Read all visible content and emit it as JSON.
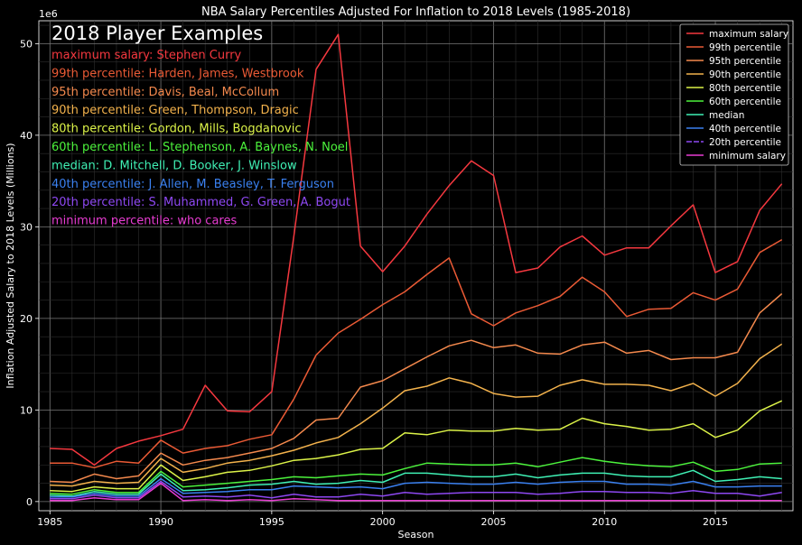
{
  "chart_data": {
    "type": "line",
    "title": "NBA Salary Percentiles Adjusted For Inflation to 2018 Levels (1985-2018)",
    "xlabel": "Season",
    "ylabel": "Inflation Adjusted Salary to 2018 Levels (Millions)",
    "y_offset_label": "1e6",
    "xlim": [
      1984.5,
      2018.5
    ],
    "ylim": [
      -1,
      52.5
    ],
    "xticks": [
      1985,
      1990,
      1995,
      2000,
      2005,
      2010,
      2015
    ],
    "yticks": [
      0,
      10,
      20,
      30,
      40,
      50
    ],
    "grid": true,
    "legend_position": "top-right",
    "x": [
      1985,
      1986,
      1987,
      1988,
      1989,
      1990,
      1991,
      1992,
      1993,
      1994,
      1995,
      1996,
      1997,
      1998,
      1999,
      2000,
      2001,
      2002,
      2003,
      2004,
      2005,
      2006,
      2007,
      2008,
      2009,
      2010,
      2011,
      2012,
      2013,
      2014,
      2015,
      2016,
      2017,
      2018
    ],
    "series": [
      {
        "name": "maximum salary",
        "color": "#f5383f",
        "values": [
          5.8,
          5.7,
          4.0,
          5.8,
          6.6,
          7.2,
          7.9,
          12.7,
          9.9,
          9.8,
          12.0,
          29.0,
          47.2,
          51.0,
          27.9,
          25.1,
          27.9,
          31.4,
          34.5,
          37.2,
          35.6,
          25.0,
          25.5,
          27.8,
          29.0,
          26.9,
          27.7,
          27.7,
          30.1,
          32.4,
          25.0,
          26.2,
          31.8,
          34.7
        ]
      },
      {
        "name": "99th percentile",
        "color": "#ea5a35",
        "values": [
          4.2,
          4.2,
          3.7,
          4.4,
          4.2,
          6.7,
          5.3,
          5.8,
          6.1,
          6.8,
          7.3,
          11.2,
          16.0,
          18.4,
          19.9,
          21.5,
          22.9,
          24.8,
          26.6,
          20.5,
          19.2,
          20.6,
          21.4,
          22.4,
          24.5,
          22.9,
          20.2,
          21.0,
          21.1,
          22.8,
          22.0,
          23.2,
          27.2,
          28.6
        ]
      },
      {
        "name": "95th percentile",
        "color": "#f4894d",
        "values": [
          2.2,
          2.1,
          3.0,
          2.5,
          2.8,
          5.3,
          4.0,
          4.5,
          4.8,
          5.3,
          5.8,
          6.9,
          8.9,
          9.1,
          12.5,
          13.2,
          14.5,
          15.8,
          17.0,
          17.6,
          16.8,
          17.1,
          16.2,
          16.1,
          17.1,
          17.4,
          16.2,
          16.5,
          15.5,
          15.7,
          15.7,
          16.3,
          20.6,
          22.7
        ]
      },
      {
        "name": "90th percentile",
        "color": "#f3b24c",
        "values": [
          1.8,
          1.7,
          2.2,
          2.0,
          2.1,
          4.7,
          3.2,
          3.6,
          4.2,
          4.5,
          5.0,
          5.6,
          6.4,
          7.0,
          8.5,
          10.2,
          12.1,
          12.6,
          13.5,
          12.9,
          11.8,
          11.4,
          11.5,
          12.7,
          13.3,
          12.8,
          12.8,
          12.7,
          12.1,
          12.9,
          11.5,
          12.9,
          15.6,
          17.2
        ]
      },
      {
        "name": "80th percentile",
        "color": "#dcf348",
        "values": [
          1.2,
          1.1,
          1.6,
          1.4,
          1.4,
          4.0,
          2.3,
          2.7,
          3.2,
          3.4,
          3.9,
          4.5,
          4.7,
          5.1,
          5.7,
          5.8,
          7.5,
          7.3,
          7.8,
          7.7,
          7.7,
          8.0,
          7.8,
          7.9,
          9.1,
          8.5,
          8.2,
          7.8,
          7.9,
          8.5,
          7.0,
          7.8,
          9.9,
          11.0
        ]
      },
      {
        "name": "60th percentile",
        "color": "#4cf33c",
        "values": [
          0.9,
          0.8,
          1.3,
          1.0,
          1.0,
          3.3,
          1.6,
          1.8,
          2.0,
          2.2,
          2.4,
          2.7,
          2.6,
          2.8,
          3.0,
          2.9,
          3.6,
          4.2,
          4.1,
          4.0,
          4.0,
          4.2,
          3.8,
          4.3,
          4.8,
          4.4,
          4.1,
          3.9,
          3.8,
          4.3,
          3.3,
          3.5,
          4.1,
          4.2
        ]
      },
      {
        "name": "median",
        "color": "#3ff0b4",
        "values": [
          0.7,
          0.6,
          1.1,
          0.8,
          0.8,
          3.0,
          1.2,
          1.3,
          1.5,
          1.8,
          1.9,
          2.2,
          1.9,
          2.0,
          2.3,
          2.1,
          3.1,
          3.1,
          2.9,
          2.7,
          2.7,
          3.0,
          2.6,
          2.9,
          3.1,
          3.1,
          2.8,
          2.7,
          2.7,
          3.4,
          2.2,
          2.4,
          2.7,
          2.5
        ]
      },
      {
        "name": "40th percentile",
        "color": "#3a80f0",
        "values": [
          0.5,
          0.5,
          0.9,
          0.6,
          0.6,
          2.5,
          0.9,
          1.0,
          1.1,
          1.3,
          1.3,
          1.7,
          1.6,
          1.5,
          1.6,
          1.4,
          2.0,
          2.1,
          2.0,
          1.9,
          1.9,
          2.1,
          1.9,
          2.1,
          2.2,
          2.2,
          1.9,
          1.9,
          1.8,
          2.2,
          1.6,
          1.6,
          1.7,
          1.7
        ]
      },
      {
        "name": "20th percentile",
        "color": "#8e48f2",
        "values": [
          0.3,
          0.3,
          0.7,
          0.4,
          0.4,
          2.2,
          0.5,
          0.6,
          0.5,
          0.7,
          0.4,
          0.8,
          0.5,
          0.5,
          0.8,
          0.6,
          1.0,
          0.8,
          0.9,
          1.0,
          1.0,
          1.0,
          0.8,
          0.9,
          1.1,
          1.1,
          1.0,
          1.0,
          0.9,
          1.2,
          0.9,
          0.9,
          0.6,
          1.0
        ]
      },
      {
        "name": "minimum salary",
        "color": "#e83cd2",
        "values": [
          0.1,
          0.1,
          0.4,
          0.2,
          0.2,
          2.0,
          0.1,
          0.2,
          0.1,
          0.2,
          0.1,
          0.3,
          0.2,
          0.1,
          0.1,
          0.1,
          0.1,
          0.1,
          0.1,
          0.1,
          0.1,
          0.1,
          0.1,
          0.1,
          0.1,
          0.1,
          0.1,
          0.1,
          0.1,
          0.1,
          0.1,
          0.1,
          0.1,
          0.1
        ]
      }
    ],
    "annotations": [
      {
        "text": "2018 Player Examples",
        "color": "#ffffff"
      },
      {
        "text": "maximum salary: Stephen Curry",
        "color": "#f5383f"
      },
      {
        "text": "99th percentile: Harden, James, Westbrook",
        "color": "#ea5a35"
      },
      {
        "text": "95th percentile: Davis, Beal, McCollum",
        "color": "#f4894d"
      },
      {
        "text": "90th percentile: Green, Thompson, Dragic",
        "color": "#f3b24c"
      },
      {
        "text": "80th percentile: Gordon, Mills, Bogdanovic",
        "color": "#dcf348"
      },
      {
        "text": "60th percentile: L. Stephenson, A. Baynes, N. Noel",
        "color": "#4cf33c"
      },
      {
        "text": "median: D. Mitchell, D. Booker, J. Winslow",
        "color": "#3ff0b4"
      },
      {
        "text": "40th percentile: J. Allen, M. Beasley, T. Ferguson",
        "color": "#3a80f0"
      },
      {
        "text": "20th percentile: S. Muhammed, G. Green, A. Bogut",
        "color": "#8e48f2"
      },
      {
        "text": "minimum percentile: who cares",
        "color": "#e83cd2"
      }
    ]
  }
}
